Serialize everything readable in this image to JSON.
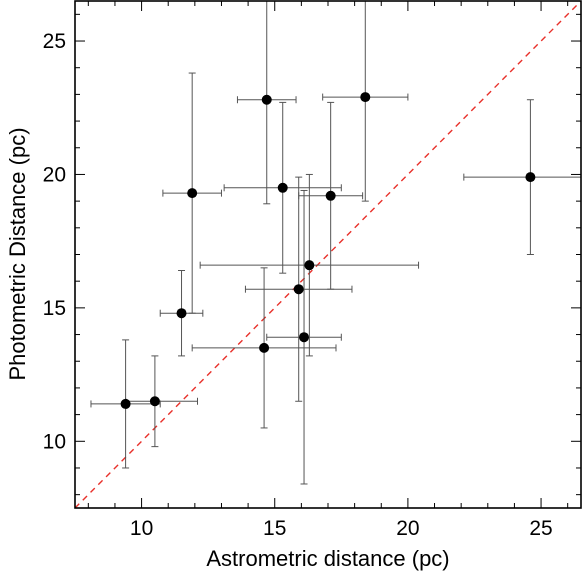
{
  "chart_data": {
    "type": "scatter",
    "title": "",
    "xlabel": "Astrometric distance (pc)",
    "ylabel": "Photometric Distance (pc)",
    "xlim": [
      7.5,
      26.5
    ],
    "ylim": [
      7.5,
      26.5
    ],
    "xticks": [
      10,
      15,
      20,
      25
    ],
    "yticks": [
      10,
      15,
      20,
      25
    ],
    "xtick_labels": [
      "10",
      "15",
      "20",
      "25"
    ],
    "ytick_labels": [
      "10",
      "15",
      "20",
      "25"
    ],
    "grid": false,
    "legend": "none",
    "reference_line": {
      "style": "dashed",
      "color": "#e8302a",
      "from": [
        7.5,
        7.5
      ],
      "to": [
        26.5,
        26.5
      ],
      "meaning": "y = x"
    },
    "colors": {
      "points": "#000000",
      "error_bars": "#555555",
      "axes": "#000000"
    },
    "points": [
      {
        "x": 9.4,
        "y": 11.4,
        "x_err": [
          1.3,
          1.3
        ],
        "y_err": [
          2.4,
          2.4
        ]
      },
      {
        "x": 10.5,
        "y": 11.5,
        "x_err": [
          1.1,
          1.6
        ],
        "y_err": [
          1.7,
          1.7
        ]
      },
      {
        "x": 11.5,
        "y": 14.8,
        "x_err": [
          0.8,
          0.8
        ],
        "y_err": [
          1.6,
          1.6
        ]
      },
      {
        "x": 11.9,
        "y": 19.3,
        "x_err": [
          1.1,
          1.1
        ],
        "y_err": [
          4.5,
          4.5
        ]
      },
      {
        "x": 14.6,
        "y": 13.5,
        "x_err": [
          2.7,
          2.7
        ],
        "y_err": [
          3.0,
          3.0
        ]
      },
      {
        "x": 14.7,
        "y": 22.8,
        "x_err": [
          1.1,
          1.1
        ],
        "y_err": [
          3.9,
          3.9
        ]
      },
      {
        "x": 15.3,
        "y": 19.5,
        "x_err": [
          2.2,
          2.2
        ],
        "y_err": [
          3.2,
          3.2
        ]
      },
      {
        "x": 15.9,
        "y": 15.7,
        "x_err": [
          2.0,
          2.0
        ],
        "y_err": [
          4.2,
          4.2
        ]
      },
      {
        "x": 16.1,
        "y": 13.9,
        "x_err": [
          1.4,
          1.4
        ],
        "y_err": [
          5.5,
          5.5
        ]
      },
      {
        "x": 16.3,
        "y": 16.6,
        "x_err": [
          4.1,
          4.1
        ],
        "y_err": [
          3.4,
          3.4
        ]
      },
      {
        "x": 17.1,
        "y": 19.2,
        "x_err": [
          1.2,
          1.2
        ],
        "y_err": [
          3.5,
          3.5
        ]
      },
      {
        "x": 18.4,
        "y": 22.9,
        "x_err": [
          1.6,
          1.6
        ],
        "y_err": [
          3.9,
          3.9
        ]
      },
      {
        "x": 24.6,
        "y": 19.9,
        "x_err": [
          2.5,
          2.5
        ],
        "y_err": [
          2.9,
          2.9
        ]
      }
    ]
  }
}
